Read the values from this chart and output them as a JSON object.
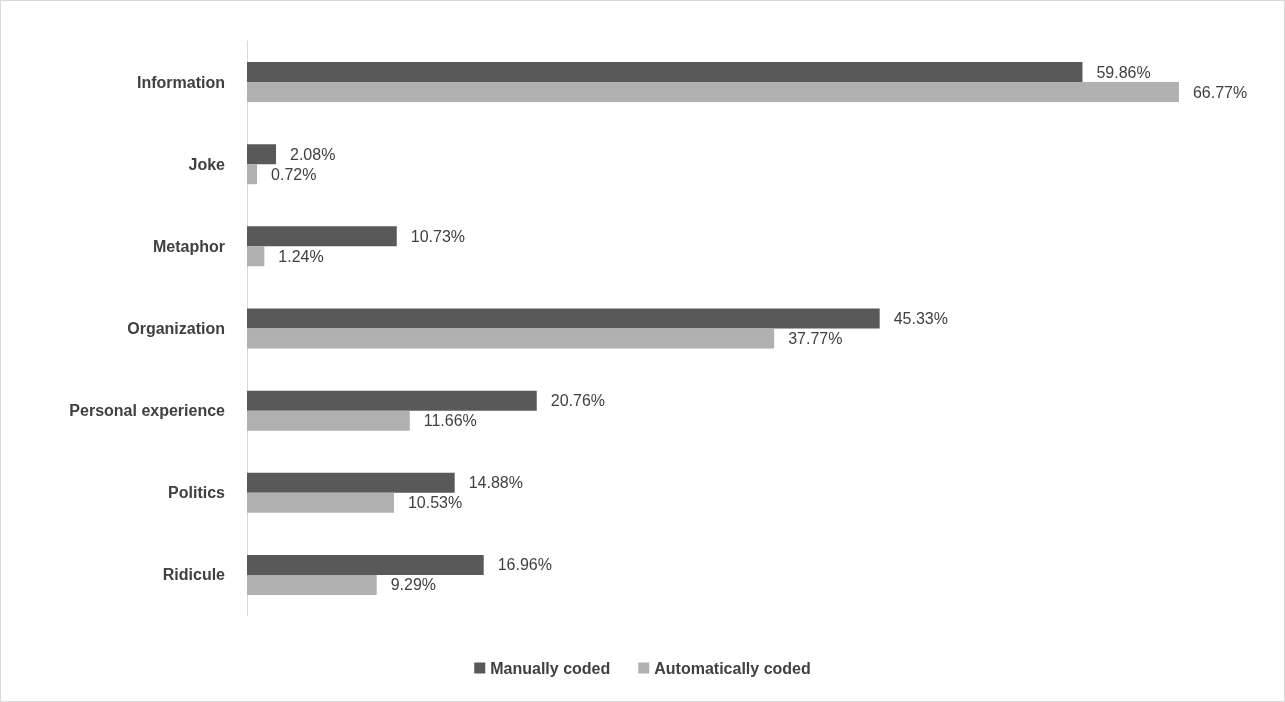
{
  "chart_data": {
    "type": "bar",
    "orientation": "horizontal",
    "categories": [
      "Information",
      "Joke",
      "Metaphor",
      "Organization",
      "Personal experience",
      "Politics",
      "Ridicule"
    ],
    "series": [
      {
        "name": "Manually coded",
        "color": "#595959",
        "values": [
          59.86,
          2.08,
          10.73,
          45.33,
          20.76,
          14.88,
          16.96
        ],
        "value_labels": [
          "59.86%",
          "2.08%",
          "10.73%",
          "45.33%",
          "20.76%",
          "14.88%",
          "16.96%"
        ]
      },
      {
        "name": "Automatically coded",
        "color": "#b0b0b0",
        "values": [
          66.77,
          0.72,
          1.24,
          37.77,
          11.66,
          10.53,
          9.29
        ],
        "value_labels": [
          "66.77%",
          "0.72%",
          "1.24%",
          "37.77%",
          "11.66%",
          "10.53%",
          "9.29%"
        ]
      }
    ],
    "legend": "bottom",
    "grid": false
  }
}
